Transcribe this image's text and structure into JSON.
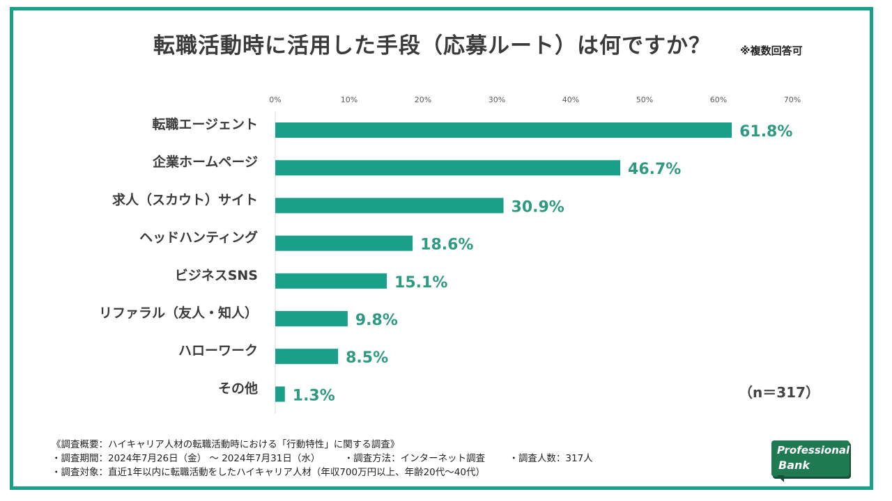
{
  "title": "転職活動時に活用した手段（応募ルート）は何ですか？",
  "title_note": "※複数回答可",
  "sample_size": "（n＝317）",
  "colors": {
    "bar": "#1aa088",
    "value": "#2e9a82",
    "frame": "#1aa088"
  },
  "chart_data": {
    "type": "bar",
    "orientation": "horizontal",
    "title": "転職活動時に活用した手段（応募ルート）は何ですか？",
    "categories": [
      "転職エージェント",
      "企業ホームページ",
      "求人（スカウト）サイト",
      "ヘッドハンティング",
      "ビジネスSNS",
      "リファラル（友人・知人）",
      "ハローワーク",
      "その他"
    ],
    "values": [
      61.8,
      46.7,
      30.9,
      18.6,
      15.1,
      9.8,
      8.5,
      1.3
    ],
    "value_labels": [
      "61.8%",
      "46.7%",
      "30.9%",
      "18.6%",
      "15.1%",
      "9.8%",
      "8.5%",
      "1.3%"
    ],
    "xlim": [
      0,
      70
    ],
    "ticks": [
      0,
      10,
      20,
      30,
      40,
      50,
      60,
      70
    ],
    "tick_labels": [
      "0%",
      "10%",
      "20%",
      "30%",
      "40%",
      "50%",
      "60%",
      "70%"
    ],
    "xlabel": "",
    "ylabel": "",
    "grid": false
  },
  "footer": {
    "line1": "《調査概要：ハイキャリア人材の転職活動時における「行動特性」に関する調査》",
    "line2_period": "・調査期間：2024年7月26日（金） ～ 2024年7月31日（水）",
    "line2_method": "・調査方法：インターネット調査",
    "line2_count": "・調査人数：317人",
    "line3": "・調査対象：直近1年以内に転職活動をしたハイキャリア人材（年収700万円以上、年齢20代～40代）"
  },
  "logo": {
    "line1": "Professional",
    "line2": "Bank"
  }
}
